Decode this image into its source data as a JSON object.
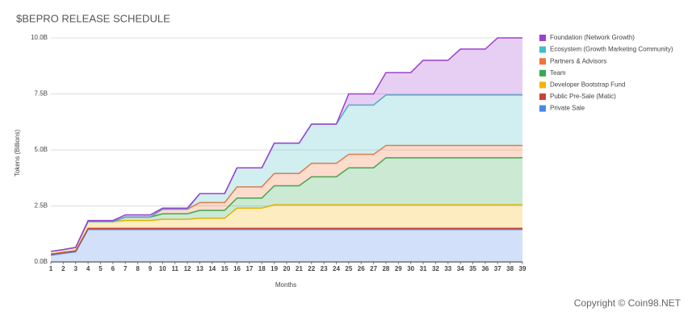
{
  "chart_data": {
    "type": "stacked_area",
    "title": "$BEPRO RELEASE SCHEDULE",
    "x_label": "Months",
    "y_label": "Tokens (Billions)",
    "annotation": "Copyright © Coin98.NET",
    "x": [
      1,
      2,
      3,
      4,
      5,
      6,
      7,
      8,
      9,
      10,
      11,
      12,
      13,
      14,
      15,
      16,
      17,
      18,
      19,
      20,
      21,
      22,
      23,
      24,
      25,
      26,
      27,
      28,
      29,
      30,
      31,
      32,
      33,
      34,
      35,
      36,
      37,
      38,
      39
    ],
    "xlim": [
      1,
      39
    ],
    "xticks": [
      1,
      2,
      3,
      4,
      5,
      6,
      7,
      8,
      9,
      10,
      11,
      12,
      13,
      14,
      15,
      16,
      17,
      18,
      19,
      20,
      21,
      22,
      23,
      24,
      25,
      26,
      27,
      28,
      29,
      30,
      31,
      32,
      33,
      34,
      35,
      36,
      37,
      38,
      39
    ],
    "ylim": [
      0,
      10
    ],
    "yticks": [
      {
        "value": 0,
        "label": "0.0B"
      },
      {
        "value": 2.5,
        "label": "2.5B"
      },
      {
        "value": 5,
        "label": "5.0B"
      },
      {
        "value": 7.5,
        "label": "7.5B"
      },
      {
        "value": 10,
        "label": "10.0B"
      }
    ],
    "grid": true,
    "legend": "right",
    "series": [
      {
        "name": "Foundation (Network Growth)",
        "color": "#9c40cf",
        "values": [
          0,
          0,
          0,
          0.05,
          0.05,
          0.05,
          0.1,
          0.1,
          0.1,
          0.05,
          0.05,
          0.05,
          0,
          0,
          0,
          0,
          0,
          0,
          0,
          0,
          0,
          0,
          0,
          0,
          0.5,
          0.5,
          0.5,
          1.0,
          1.0,
          1.0,
          1.55,
          1.55,
          1.55,
          2.05,
          2.05,
          2.05,
          2.55,
          2.55,
          2.55
        ]
      },
      {
        "name": "Ecosystem (Growth Marketing Community)",
        "color": "#46bdc6",
        "values": [
          0,
          0,
          0,
          0,
          0,
          0,
          0,
          0,
          0,
          0,
          0,
          0,
          0.4,
          0.4,
          0.4,
          0.85,
          0.85,
          0.85,
          1.35,
          1.35,
          1.35,
          1.75,
          1.75,
          1.75,
          2.2,
          2.2,
          2.2,
          2.25,
          2.25,
          2.25,
          2.25,
          2.25,
          2.25,
          2.25,
          2.25,
          2.25,
          2.25,
          2.25,
          2.25
        ]
      },
      {
        "name": "Partners & Advisors",
        "color": "#ee7536",
        "values": [
          0,
          0,
          0,
          0,
          0,
          0,
          0,
          0,
          0,
          0.2,
          0.2,
          0.2,
          0.35,
          0.35,
          0.35,
          0.5,
          0.5,
          0.5,
          0.55,
          0.55,
          0.55,
          0.6,
          0.6,
          0.6,
          0.6,
          0.6,
          0.6,
          0.55,
          0.55,
          0.55,
          0.55,
          0.55,
          0.55,
          0.55,
          0.55,
          0.55,
          0.55,
          0.55,
          0.55
        ]
      },
      {
        "name": "Team",
        "color": "#34a853",
        "values": [
          0,
          0,
          0,
          0,
          0,
          0,
          0.15,
          0.15,
          0.15,
          0.25,
          0.25,
          0.25,
          0.35,
          0.35,
          0.35,
          0.45,
          0.45,
          0.45,
          0.85,
          0.85,
          0.85,
          1.25,
          1.25,
          1.25,
          1.65,
          1.65,
          1.65,
          2.1,
          2.1,
          2.1,
          2.1,
          2.1,
          2.1,
          2.1,
          2.1,
          2.1,
          2.1,
          2.1,
          2.1
        ]
      },
      {
        "name": "Developer Bootstrap Fund",
        "color": "#f5b400",
        "values": [
          0.12,
          0.12,
          0.15,
          0.3,
          0.3,
          0.3,
          0.35,
          0.35,
          0.35,
          0.4,
          0.4,
          0.4,
          0.45,
          0.45,
          0.45,
          0.9,
          0.9,
          0.9,
          1.05,
          1.05,
          1.05,
          1.05,
          1.05,
          1.05,
          1.05,
          1.05,
          1.05,
          1.05,
          1.05,
          1.05,
          1.05,
          1.05,
          1.05,
          1.05,
          1.05,
          1.05,
          1.05,
          1.05,
          1.05
        ]
      },
      {
        "name": "Public Pre-Sale (Matic)",
        "color": "#c8423b",
        "values": [
          0.05,
          0.05,
          0.05,
          0.05,
          0.05,
          0.05,
          0.05,
          0.05,
          0.05,
          0.05,
          0.05,
          0.05,
          0.05,
          0.05,
          0.05,
          0.05,
          0.05,
          0.05,
          0.05,
          0.05,
          0.05,
          0.05,
          0.05,
          0.05,
          0.05,
          0.05,
          0.05,
          0.05,
          0.05,
          0.05,
          0.05,
          0.05,
          0.05,
          0.05,
          0.05,
          0.05,
          0.05,
          0.05,
          0.05
        ]
      },
      {
        "name": "Private Sale",
        "color": "#4a86e8",
        "values": [
          0.3,
          0.38,
          0.45,
          1.45,
          1.45,
          1.45,
          1.45,
          1.45,
          1.45,
          1.45,
          1.45,
          1.45,
          1.45,
          1.45,
          1.45,
          1.45,
          1.45,
          1.45,
          1.45,
          1.45,
          1.45,
          1.45,
          1.45,
          1.45,
          1.45,
          1.45,
          1.45,
          1.45,
          1.45,
          1.45,
          1.45,
          1.45,
          1.45,
          1.45,
          1.45,
          1.45,
          1.45,
          1.45,
          1.45
        ]
      }
    ]
  }
}
